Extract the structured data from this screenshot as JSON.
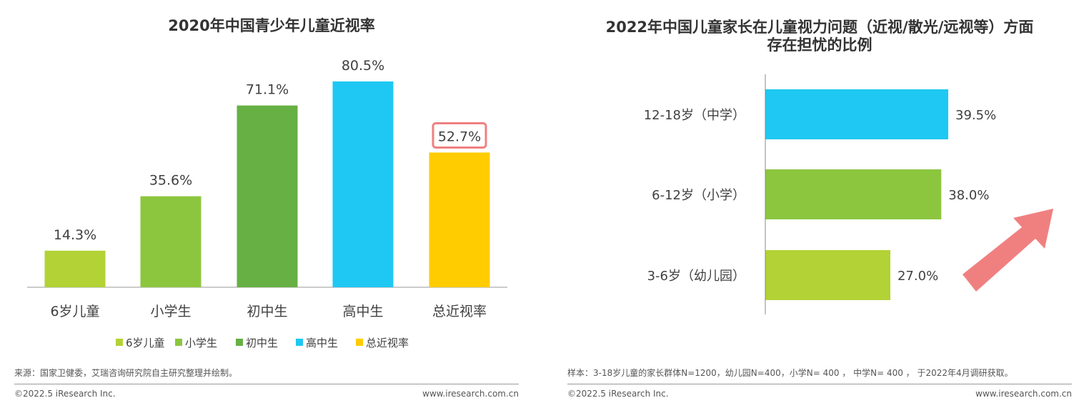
{
  "chart_data": [
    {
      "type": "bar",
      "title": "2020年中国青少年儿童近视率",
      "categories": [
        "6岁儿童",
        "小学生",
        "初中生",
        "高中生",
        "总近视率"
      ],
      "values": [
        14.3,
        35.6,
        71.1,
        80.5,
        52.7
      ],
      "labels": [
        "14.3%",
        "35.6%",
        "71.1%",
        "80.5%",
        "52.7%"
      ],
      "colors": [
        "#b2d235",
        "#8cc63f",
        "#66b044",
        "#1fc8f2",
        "#ffcc00"
      ],
      "highlight_index": 4,
      "highlight_color": "#f08080",
      "legend": [
        "6岁儿童",
        "小学生",
        "初中生",
        "高中生",
        "总近视率"
      ],
      "legend_placement": "bottom",
      "ylim": [
        0,
        100
      ],
      "grid": false
    },
    {
      "type": "bar",
      "orientation": "horizontal",
      "title": "2022年中国儿童家长在儿童视力问题（近视/散光/远视等）方面存在担忧的比例",
      "title_lines": [
        "2022年中国儿童家长在儿童视力问题（近视/散光/远视等）方面",
        "存在担忧的比例"
      ],
      "categories": [
        "12-18岁（中学）",
        "6-12岁（小学）",
        "3-6岁（幼儿园）"
      ],
      "values": [
        39.5,
        38.0,
        27.0
      ],
      "labels": [
        "39.5%",
        "38.0%",
        "27.0%"
      ],
      "colors": [
        "#1fc8f2",
        "#8cc63f",
        "#b2d235"
      ],
      "xlim": [
        0,
        45
      ],
      "grid": false,
      "annotation": "upward-arrow",
      "arrow_color": "#f08080"
    }
  ],
  "left": {
    "source": "来源：国家卫健委，艾瑞咨询研究院自主研究整理并绘制。",
    "copyright": "©2022.5 iResearch Inc.",
    "url": "www.iresearch.com.cn"
  },
  "right": {
    "source": "样本：3-18岁儿童的家长群体N=1200，幼儿园N=400，小学N= 400 ， 中学N= 400 ， 于2022年4月调研获取。",
    "copyright": "©2022.5 iResearch Inc.",
    "url": "www.iresearch.com.cn"
  }
}
